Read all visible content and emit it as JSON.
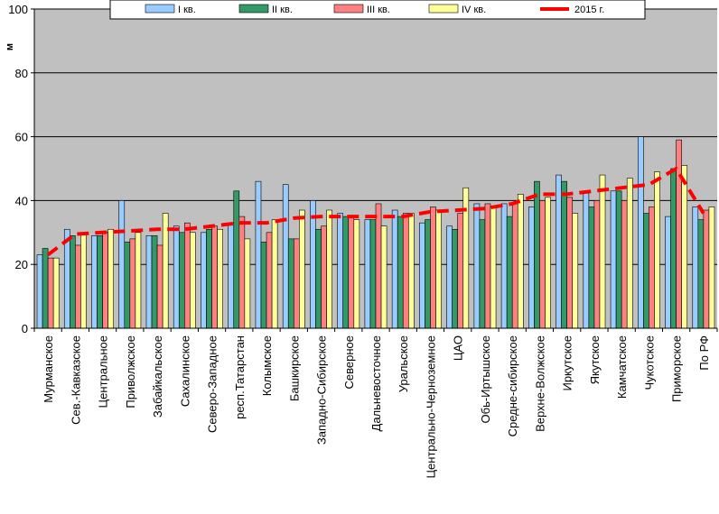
{
  "chart_data": {
    "type": "bar",
    "ylabel": "м",
    "ylim": [
      0,
      100
    ],
    "yticks": [
      0,
      20,
      40,
      60,
      80,
      100
    ],
    "grid": true,
    "legend_position": "top",
    "categories": [
      "Мурманское",
      "Сев.-Кавказское",
      "Центральное",
      "Приволжское",
      "Забайкальское",
      "Сахалинское",
      "Северо-Западное",
      "респ.Татарстан",
      "Колымское",
      "Башкирское",
      "Западно-Сибирское",
      "Северное",
      "Дальневосточное",
      "Уральское",
      "Центрально-Черноземное",
      "ЦАО",
      "Обь-Иртышское",
      "Средне-сибирское",
      "Верхне-Волжское",
      "Иркутское",
      "Якутское",
      "Камчатское",
      "Чукотское",
      "Приморское",
      "По РФ"
    ],
    "series": [
      {
        "name": "I кв.",
        "kind": "bar",
        "color": "#99CCFF",
        "values": [
          23,
          31,
          29,
          40,
          29,
          32,
          30,
          33,
          46,
          45,
          40,
          36,
          34,
          37,
          33,
          32,
          39,
          39,
          38,
          48,
          43,
          43,
          60,
          35,
          38
        ]
      },
      {
        "name": "II кв.",
        "kind": "bar",
        "color": "#339966",
        "values": [
          25,
          29,
          29,
          27,
          29,
          30,
          31,
          43,
          27,
          28,
          31,
          35,
          34,
          35,
          34,
          31,
          34,
          35,
          46,
          46,
          38,
          43,
          36,
          50,
          34
        ]
      },
      {
        "name": "III кв.",
        "kind": "bar",
        "color": "#FF8080",
        "values": [
          22,
          26,
          30,
          28,
          26,
          33,
          32,
          35,
          30,
          28,
          32,
          35,
          39,
          36,
          38,
          36,
          39,
          39,
          40,
          41,
          40,
          40,
          38,
          59,
          37
        ]
      },
      {
        "name": "IV кв.",
        "kind": "bar",
        "color": "#FFFF99",
        "values": [
          22,
          30,
          31,
          30,
          36,
          30,
          31,
          28,
          34,
          37,
          37,
          34,
          32,
          36,
          37,
          44,
          38,
          42,
          41,
          36,
          48,
          47,
          49,
          51,
          38
        ]
      },
      {
        "name": "2015 г.",
        "kind": "line",
        "color": "#FF0000",
        "dashed": true,
        "values": [
          23,
          29.5,
          30,
          30.5,
          31,
          31,
          32,
          33,
          33,
          34.5,
          35,
          35,
          35,
          35,
          36.5,
          37,
          37.5,
          39,
          42,
          42,
          43,
          44,
          45,
          50,
          36
        ]
      }
    ]
  }
}
